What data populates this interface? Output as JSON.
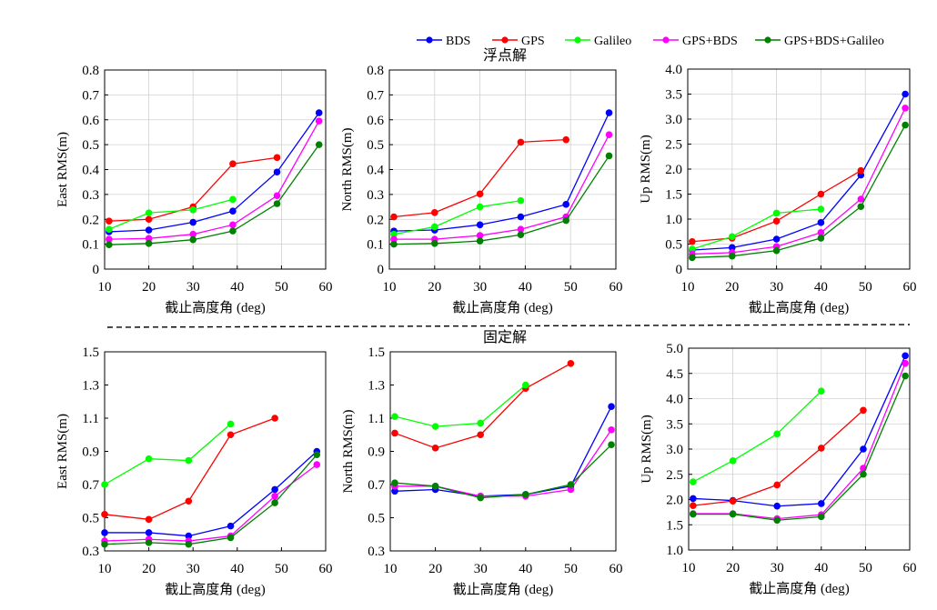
{
  "legend": [
    {
      "name": "BDS",
      "color": "#0000ff"
    },
    {
      "name": "GPS",
      "color": "#ff0000"
    },
    {
      "name": "Galileo",
      "color": "#00ff00"
    },
    {
      "name": "GPS+BDS",
      "color": "#ff00ff"
    },
    {
      "name": "GPS+BDS+Galileo",
      "color": "#008000"
    }
  ],
  "section_titles": {
    "top": "浮点解",
    "bottom": "固定解"
  },
  "chart_data": [
    {
      "type": "line",
      "section": "top",
      "panel": "east-float",
      "xlabel": "截止高度角 (deg)",
      "ylabel": "East RMS(m)",
      "xlim": [
        10,
        60
      ],
      "ylim": [
        0,
        0.8
      ],
      "xticks": [
        10,
        20,
        30,
        40,
        50,
        60
      ],
      "yticks": [
        0,
        0.1,
        0.2,
        0.3,
        0.4,
        0.5,
        0.6,
        0.7,
        0.8
      ],
      "ytick_labels": [
        "0",
        "0.1",
        "0.2",
        "0.3",
        "0.4",
        "0.5",
        "0.6",
        "0.7",
        "0.8"
      ],
      "grid": true,
      "series": [
        {
          "name": "BDS",
          "x": [
            11,
            20,
            30,
            39,
            49,
            58.5
          ],
          "y": [
            0.15,
            0.157,
            0.188,
            0.233,
            0.39,
            0.628
          ]
        },
        {
          "name": "GPS",
          "x": [
            11,
            20,
            30,
            39,
            49
          ],
          "y": [
            0.193,
            0.2,
            0.25,
            0.423,
            0.448
          ]
        },
        {
          "name": "Galileo",
          "x": [
            11,
            20,
            30,
            39
          ],
          "y": [
            0.16,
            0.226,
            0.238,
            0.28
          ]
        },
        {
          "name": "GPS+BDS",
          "x": [
            11,
            20,
            30,
            39,
            49,
            58.5
          ],
          "y": [
            0.12,
            0.123,
            0.14,
            0.178,
            0.295,
            0.595
          ]
        },
        {
          "name": "GPS+BDS+Galileo",
          "x": [
            11,
            20,
            30,
            39,
            49,
            58.5
          ],
          "y": [
            0.098,
            0.103,
            0.118,
            0.153,
            0.263,
            0.5
          ]
        }
      ]
    },
    {
      "type": "line",
      "section": "top",
      "panel": "north-float",
      "xlabel": "截止高度角 (deg)",
      "ylabel": "North RMS(m)",
      "xlim": [
        10,
        60
      ],
      "ylim": [
        0,
        0.8
      ],
      "xticks": [
        10,
        20,
        30,
        40,
        50,
        60
      ],
      "yticks": [
        0,
        0.1,
        0.2,
        0.3,
        0.4,
        0.5,
        0.6,
        0.7,
        0.8
      ],
      "ytick_labels": [
        "0",
        "0.1",
        "0.2",
        "0.3",
        "0.4",
        "0.5",
        "0.6",
        "0.7",
        "0.8"
      ],
      "grid": true,
      "series": [
        {
          "name": "BDS",
          "x": [
            11,
            20,
            30,
            39,
            49,
            58.5
          ],
          "y": [
            0.153,
            0.157,
            0.178,
            0.21,
            0.26,
            0.628
          ]
        },
        {
          "name": "GPS",
          "x": [
            11,
            20,
            30,
            39,
            49
          ],
          "y": [
            0.21,
            0.227,
            0.302,
            0.51,
            0.52
          ]
        },
        {
          "name": "Galileo",
          "x": [
            11,
            20,
            30,
            39
          ],
          "y": [
            0.14,
            0.17,
            0.25,
            0.275
          ]
        },
        {
          "name": "GPS+BDS",
          "x": [
            11,
            20,
            30,
            39,
            49,
            58.5
          ],
          "y": [
            0.12,
            0.12,
            0.135,
            0.16,
            0.21,
            0.54
          ]
        },
        {
          "name": "GPS+BDS+Galileo",
          "x": [
            11,
            20,
            30,
            39,
            49,
            58.5
          ],
          "y": [
            0.1,
            0.103,
            0.113,
            0.138,
            0.195,
            0.455
          ]
        }
      ]
    },
    {
      "type": "line",
      "section": "top",
      "panel": "up-float",
      "xlabel": "截止高度角 (deg)",
      "ylabel": "Up RMS(m)",
      "xlim": [
        10,
        60
      ],
      "ylim": [
        0,
        4
      ],
      "xticks": [
        10,
        20,
        30,
        40,
        50,
        60
      ],
      "yticks": [
        0,
        0.5,
        1,
        1.5,
        2,
        2.5,
        3,
        3.5,
        4
      ],
      "ytick_labels": [
        "0",
        "0.5",
        "1.0",
        "1.5",
        "2.0",
        "2.5",
        "3.0",
        "3.5",
        "4.0"
      ],
      "grid": true,
      "series": [
        {
          "name": "BDS",
          "x": [
            11,
            20,
            30,
            40,
            49,
            59
          ],
          "y": [
            0.38,
            0.43,
            0.6,
            0.93,
            1.88,
            3.5
          ]
        },
        {
          "name": "GPS",
          "x": [
            11,
            20,
            30,
            40,
            49
          ],
          "y": [
            0.55,
            0.62,
            0.96,
            1.5,
            1.97
          ]
        },
        {
          "name": "Galileo",
          "x": [
            11,
            20,
            30,
            40
          ],
          "y": [
            0.4,
            0.65,
            1.12,
            1.2
          ]
        },
        {
          "name": "GPS+BDS",
          "x": [
            11,
            20,
            30,
            40,
            49,
            59
          ],
          "y": [
            0.3,
            0.33,
            0.45,
            0.73,
            1.4,
            3.22
          ]
        },
        {
          "name": "GPS+BDS+Galileo",
          "x": [
            11,
            20,
            30,
            40,
            49,
            59
          ],
          "y": [
            0.23,
            0.26,
            0.37,
            0.62,
            1.25,
            2.88
          ]
        }
      ]
    },
    {
      "type": "line",
      "section": "bottom",
      "panel": "east-fixed",
      "xlabel": "截止高度角 (deg)",
      "ylabel": "East RMS(m)",
      "xlim": [
        10,
        60
      ],
      "ylim": [
        0.3,
        1.5
      ],
      "xticks": [
        10,
        20,
        30,
        40,
        50,
        60
      ],
      "yticks": [
        0.3,
        0.5,
        0.7,
        0.9,
        1.1,
        1.3,
        1.5
      ],
      "ytick_labels": [
        "0.3",
        "0.5",
        "0.7",
        "0.9",
        "1.1",
        "1.3",
        "1.5"
      ],
      "grid": false,
      "series": [
        {
          "name": "BDS",
          "x": [
            10,
            20,
            29,
            38.5,
            48.5,
            58
          ],
          "y": [
            0.41,
            0.41,
            0.39,
            0.45,
            0.67,
            0.9
          ]
        },
        {
          "name": "GPS",
          "x": [
            10,
            20,
            29,
            38.5,
            48.5
          ],
          "y": [
            0.52,
            0.49,
            0.6,
            1.0,
            1.1
          ]
        },
        {
          "name": "Galileo",
          "x": [
            10,
            20,
            29,
            38.5
          ],
          "y": [
            0.7,
            0.855,
            0.845,
            1.065
          ]
        },
        {
          "name": "GPS+BDS",
          "x": [
            10,
            20,
            29,
            38.5,
            48.5,
            58
          ],
          "y": [
            0.36,
            0.37,
            0.36,
            0.39,
            0.63,
            0.82
          ]
        },
        {
          "name": "GPS+BDS+Galileo",
          "x": [
            10,
            20,
            29,
            38.5,
            48.5,
            58
          ],
          "y": [
            0.34,
            0.35,
            0.34,
            0.38,
            0.59,
            0.88
          ]
        }
      ]
    },
    {
      "type": "line",
      "section": "bottom",
      "panel": "north-fixed",
      "xlabel": "截止高度角 (deg)",
      "ylabel": "North RMS(m)",
      "xlim": [
        10,
        60
      ],
      "ylim": [
        0.3,
        1.5
      ],
      "xticks": [
        10,
        20,
        30,
        40,
        50,
        60
      ],
      "yticks": [
        0.3,
        0.5,
        0.7,
        0.9,
        1.1,
        1.3,
        1.5
      ],
      "ytick_labels": [
        "0.3",
        "0.5",
        "0.7",
        "0.9",
        "1.1",
        "1.3",
        "1.5"
      ],
      "grid": false,
      "series": [
        {
          "name": "BDS",
          "x": [
            11,
            20,
            30,
            40,
            50,
            59
          ],
          "y": [
            0.66,
            0.67,
            0.63,
            0.64,
            0.69,
            1.17
          ]
        },
        {
          "name": "GPS",
          "x": [
            11,
            20,
            30,
            40,
            50
          ],
          "y": [
            1.01,
            0.92,
            1.0,
            1.28,
            1.43
          ]
        },
        {
          "name": "Galileo",
          "x": [
            11,
            20,
            30,
            40
          ],
          "y": [
            1.11,
            1.05,
            1.07,
            1.3
          ]
        },
        {
          "name": "GPS+BDS",
          "x": [
            11,
            20,
            30,
            40,
            50,
            59
          ],
          "y": [
            0.69,
            0.69,
            0.63,
            0.63,
            0.67,
            1.03
          ]
        },
        {
          "name": "GPS+BDS+Galileo",
          "x": [
            11,
            20,
            30,
            40,
            50,
            59
          ],
          "y": [
            0.71,
            0.69,
            0.62,
            0.64,
            0.7,
            0.94
          ]
        }
      ]
    },
    {
      "type": "line",
      "section": "bottom",
      "panel": "up-fixed",
      "xlabel": "截止高度角 (deg)",
      "ylabel": "Up RMS(m)",
      "xlim": [
        10,
        60
      ],
      "ylim": [
        1,
        5
      ],
      "xticks": [
        10,
        20,
        30,
        40,
        50,
        60
      ],
      "yticks": [
        1,
        1.5,
        2,
        2.5,
        3,
        3.5,
        4,
        4.5,
        5
      ],
      "ytick_labels": [
        "1.0",
        "1.5",
        "2.0",
        "2.5",
        "3.0",
        "3.5",
        "4.0",
        "4.5",
        "5.0"
      ],
      "grid": true,
      "series": [
        {
          "name": "BDS",
          "x": [
            11,
            20,
            30,
            40,
            49.5,
            59
          ],
          "y": [
            2.02,
            1.98,
            1.87,
            1.92,
            3.0,
            4.85
          ]
        },
        {
          "name": "GPS",
          "x": [
            11,
            20,
            30,
            40,
            49.5
          ],
          "y": [
            1.88,
            1.97,
            2.29,
            3.02,
            3.77
          ]
        },
        {
          "name": "Galileo",
          "x": [
            11,
            20,
            30,
            40
          ],
          "y": [
            2.35,
            2.77,
            3.3,
            4.15
          ]
        },
        {
          "name": "GPS+BDS",
          "x": [
            11,
            20,
            30,
            40,
            49.5,
            59
          ],
          "y": [
            1.72,
            1.72,
            1.62,
            1.7,
            2.62,
            4.7
          ]
        },
        {
          "name": "GPS+BDS+Galileo",
          "x": [
            11,
            20,
            30,
            40,
            49.5,
            59
          ],
          "y": [
            1.71,
            1.71,
            1.59,
            1.66,
            2.5,
            4.45
          ]
        }
      ]
    }
  ]
}
